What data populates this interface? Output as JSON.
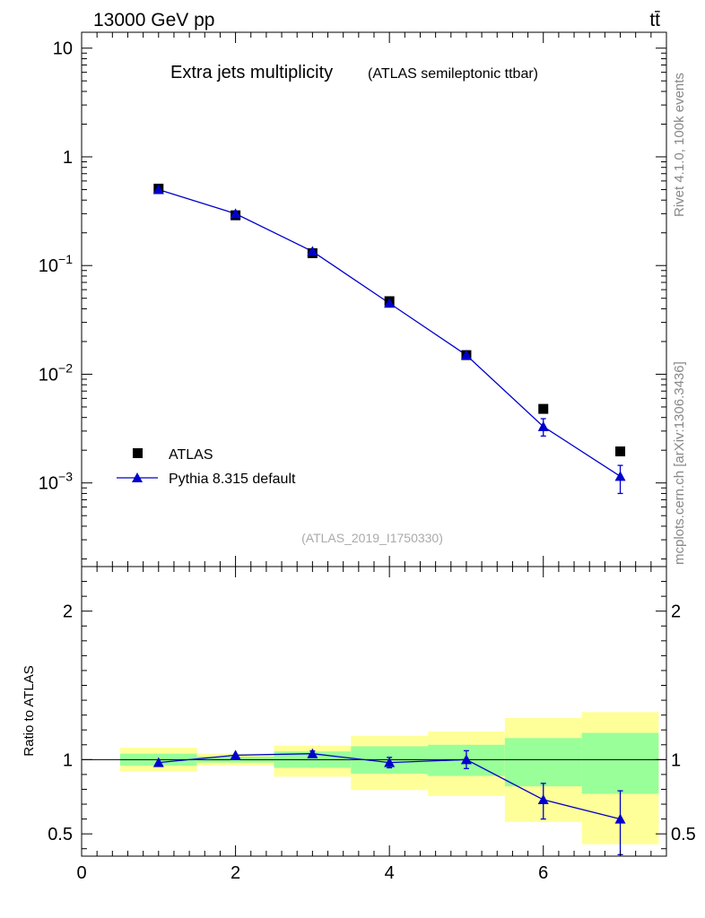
{
  "header": {
    "energy_label": "13000 GeV pp",
    "process_label": "tt̄"
  },
  "side_labels": {
    "rivet": "Rivet 4.1.0,  100k events",
    "mcplots": "mcplots.cern.ch [arXiv:1306.3436]"
  },
  "colors": {
    "mc": "#0000cc",
    "band_inner": "#99ff99",
    "band_outer": "#ffff99",
    "data": "#000000"
  },
  "chart_data": [
    {
      "id": "main",
      "type": "scatter",
      "title": "Extra jets multiplicity",
      "subtitle": "(ATLAS semileptonic ttbar)",
      "analysis_id": "(ATLAS_2019_I1750330)",
      "xlabel": "",
      "ylabel": "",
      "xlim": [
        0,
        7.6
      ],
      "ylim": [
        0.00017,
        14
      ],
      "yscale": "log",
      "yticks": [
        {
          "value": 10,
          "base": "10",
          "exp": ""
        },
        {
          "value": 1,
          "base": "1",
          "exp": ""
        },
        {
          "value": 0.1,
          "base": "10",
          "exp": "−1"
        },
        {
          "value": 0.01,
          "base": "10",
          "exp": "−2"
        },
        {
          "value": 0.001,
          "base": "10",
          "exp": "−3"
        }
      ],
      "legend_position": "bottom-left",
      "series": [
        {
          "name": "ATLAS",
          "marker": "square",
          "x": [
            1,
            2,
            3,
            4,
            5,
            6,
            7
          ],
          "y": [
            0.51,
            0.29,
            0.13,
            0.047,
            0.015,
            0.0048,
            0.00195
          ]
        },
        {
          "name": "Pythia 8.315 default",
          "marker": "triangle",
          "line": true,
          "x": [
            1,
            2,
            3,
            4,
            5,
            6,
            7
          ],
          "y": [
            0.5,
            0.3,
            0.135,
            0.045,
            0.015,
            0.0033,
            0.00115
          ],
          "yerr_low": [
            0.008,
            0.006,
            0.004,
            0.0012,
            0.0005,
            0.0006,
            0.00035
          ],
          "yerr_high": [
            0.008,
            0.006,
            0.004,
            0.0012,
            0.0005,
            0.0006,
            0.0003
          ]
        }
      ]
    },
    {
      "id": "ratio",
      "type": "scatter",
      "ylabel": "Ratio to ATLAS",
      "xlim": [
        0,
        7.6
      ],
      "ylim": [
        0.35,
        2.3
      ],
      "xticks": [
        0,
        2,
        4,
        6
      ],
      "yticks": [
        0.5,
        1,
        2
      ],
      "bins": [
        {
          "lo": 0.5,
          "hi": 1.5,
          "inner": [
            0.96,
            1.04
          ],
          "outer": [
            0.92,
            1.08
          ]
        },
        {
          "lo": 1.5,
          "hi": 2.5,
          "inner": [
            0.98,
            1.02
          ],
          "outer": [
            0.96,
            1.04
          ]
        },
        {
          "lo": 2.5,
          "hi": 3.5,
          "inner": [
            0.945,
            1.055
          ],
          "outer": [
            0.885,
            1.095
          ]
        },
        {
          "lo": 3.5,
          "hi": 4.5,
          "inner": [
            0.905,
            1.09
          ],
          "outer": [
            0.795,
            1.16
          ]
        },
        {
          "lo": 4.5,
          "hi": 5.5,
          "inner": [
            0.89,
            1.1
          ],
          "outer": [
            0.755,
            1.19
          ]
        },
        {
          "lo": 5.5,
          "hi": 6.5,
          "inner": [
            0.82,
            1.145
          ],
          "outer": [
            0.58,
            1.28
          ]
        },
        {
          "lo": 6.5,
          "hi": 7.5,
          "inner": [
            0.77,
            1.18
          ],
          "outer": [
            0.43,
            1.32
          ]
        }
      ],
      "series": [
        {
          "name": "Pythia 8.315 default",
          "marker": "triangle",
          "x": [
            1,
            2,
            3,
            4,
            5,
            6,
            7
          ],
          "y": [
            0.98,
            1.03,
            1.04,
            0.98,
            1.0,
            0.73,
            0.6
          ],
          "yerr_low": [
            0.012,
            0.012,
            0.018,
            0.035,
            0.06,
            0.13,
            0.24
          ],
          "yerr_high": [
            0.012,
            0.012,
            0.018,
            0.035,
            0.06,
            0.11,
            0.19
          ]
        }
      ]
    }
  ]
}
